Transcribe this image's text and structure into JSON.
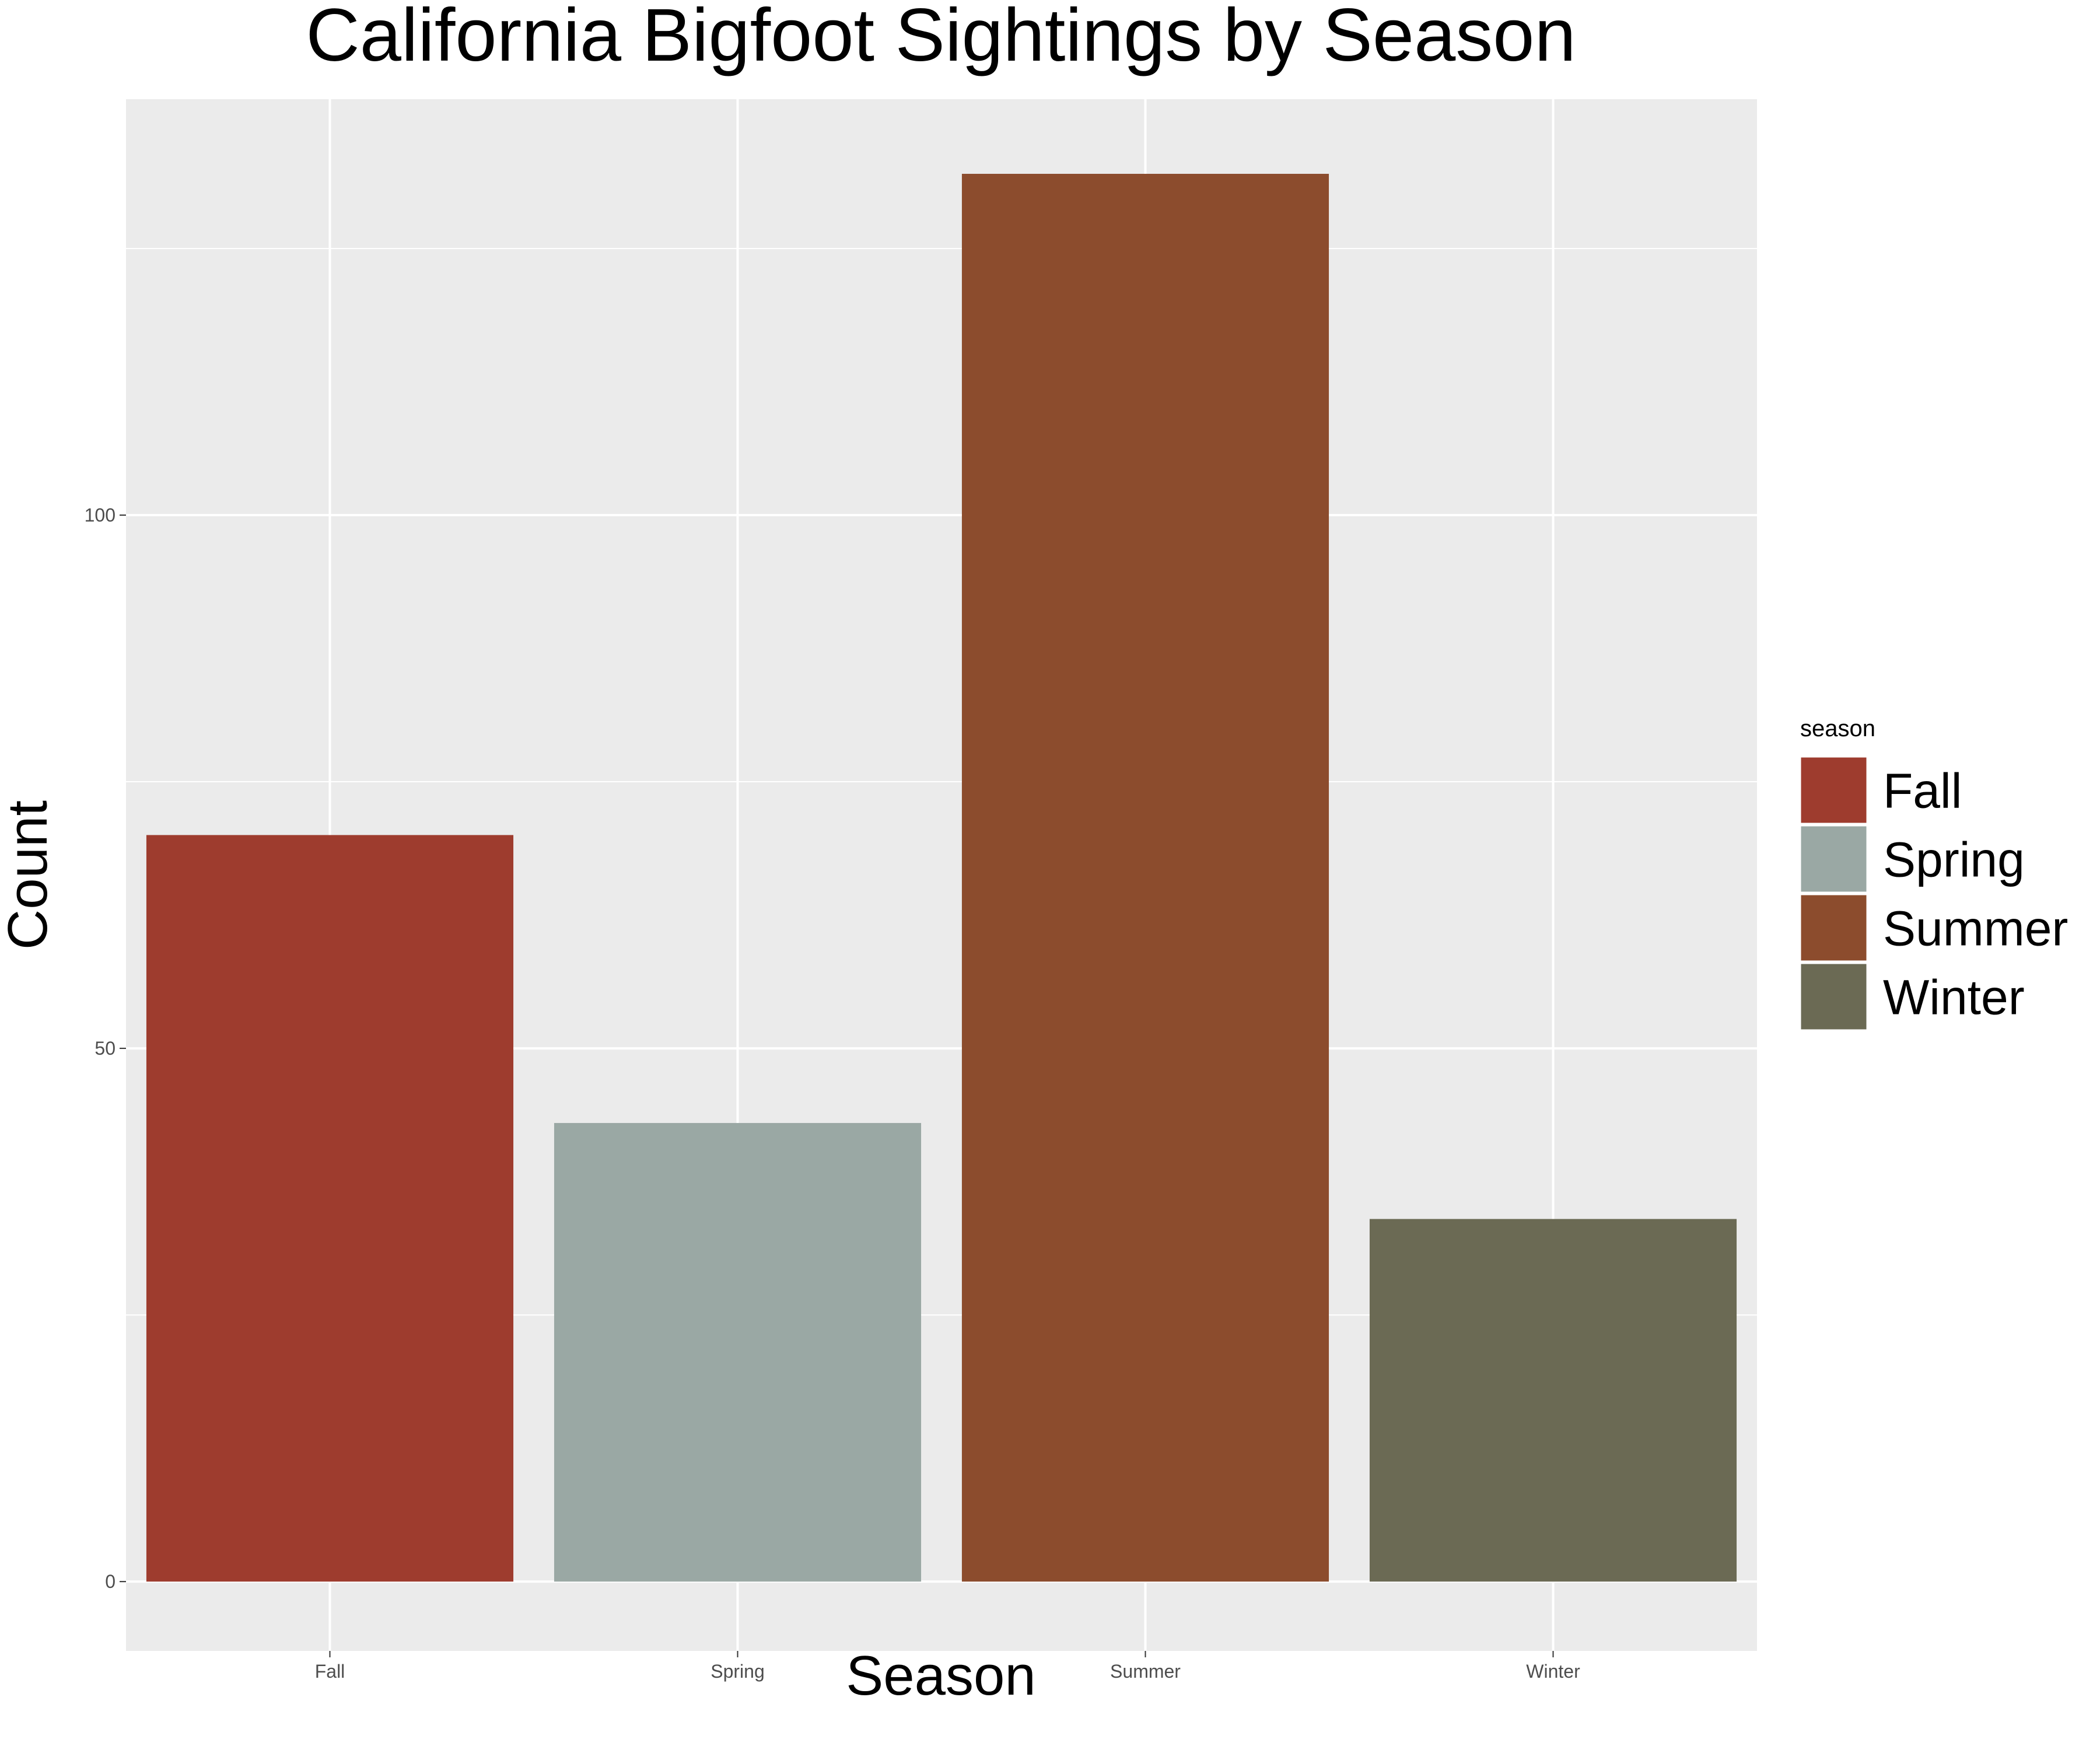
{
  "chart_data": {
    "type": "bar",
    "title": "California Bigfoot Sightings by Season",
    "xlabel": "Season",
    "ylabel": "Count",
    "categories": [
      "Fall",
      "Spring",
      "Summer",
      "Winter"
    ],
    "values": [
      70,
      43,
      132,
      34
    ],
    "colors": [
      "#9E3C2E",
      "#9AA8A4",
      "#8C4C2D",
      "#6B6A54"
    ],
    "ylim": [
      -6.5,
      139
    ],
    "yticks": [
      0,
      50,
      100
    ],
    "minor_yticks": [
      25,
      75,
      125
    ],
    "grid": true,
    "panel_background": "#EBEBEB",
    "grid_color": "#FFFFFF",
    "legend": {
      "title": "season",
      "position": "right",
      "entries": [
        "Fall",
        "Spring",
        "Summer",
        "Winter"
      ]
    }
  }
}
